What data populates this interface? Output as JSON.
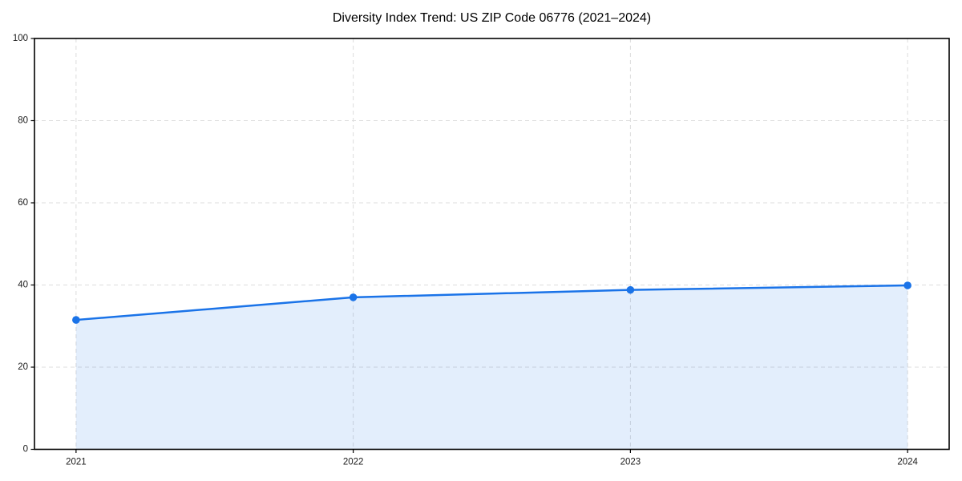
{
  "page": {
    "background_color": "#ffffff"
  },
  "chart_data": {
    "type": "area",
    "title": "Diversity Index Trend: US ZIP Code 06776 (2021–2024)",
    "categories": [
      "2021",
      "2022",
      "2023",
      "2024"
    ],
    "values": [
      31.5,
      37.0,
      38.8,
      39.9
    ],
    "xlabel": "",
    "ylabel": "",
    "ylim": [
      0,
      100
    ],
    "yticks": [
      0,
      20,
      40,
      60,
      80,
      100
    ],
    "grid": {
      "visible": true,
      "style": "dashed",
      "color": "#dcdcdc"
    },
    "legend_position": "none",
    "colors": {
      "line": "#1a73e8",
      "marker": "#1a73e8",
      "area_fill": "rgba(26,115,232,0.12)",
      "frame": "#000000",
      "tick_label": "#1a1a1a",
      "title": "#000000"
    }
  }
}
